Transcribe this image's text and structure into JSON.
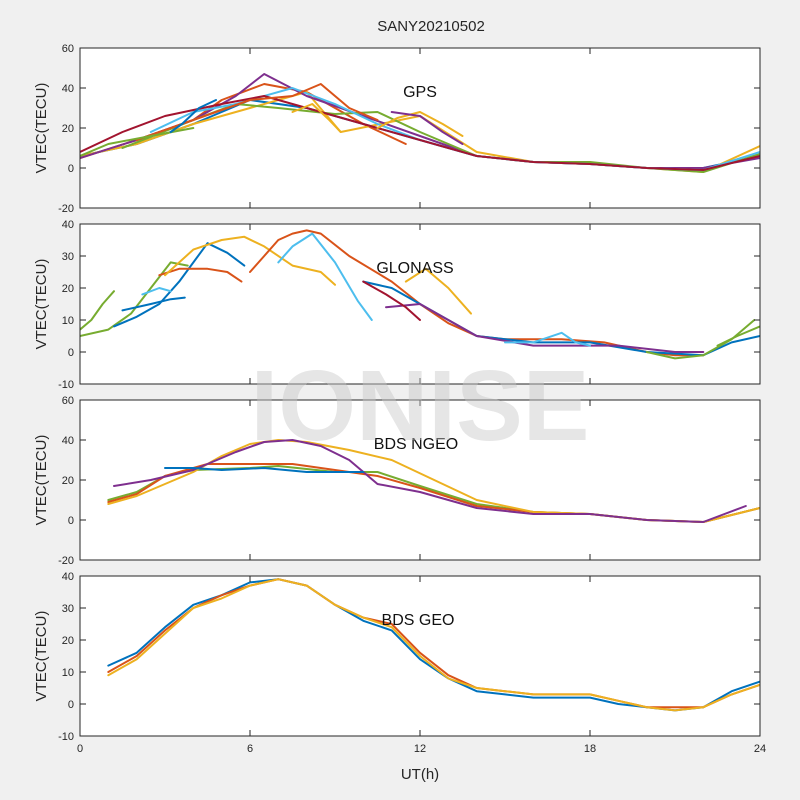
{
  "figure": {
    "title": "SANY20210502",
    "xlabel": "UT(h)",
    "watermark": "IONISE"
  },
  "chart_data": [
    {
      "type": "line",
      "annotation": "GPS",
      "ylabel": "VTEC(TECU)",
      "xlim": [
        0,
        24
      ],
      "ylim": [
        -20,
        60
      ],
      "xticks": [
        0,
        6,
        12,
        18,
        24
      ],
      "yticks": [
        -20,
        0,
        20,
        40,
        60
      ],
      "series": [
        {
          "color": "#0072BD",
          "x": [
            0,
            2,
            4,
            6,
            8,
            10,
            12,
            14,
            16,
            18,
            20,
            22,
            24
          ],
          "y": [
            6,
            12,
            22,
            34,
            30,
            22,
            14,
            6,
            3,
            2,
            0,
            0,
            6
          ]
        },
        {
          "color": "#D95319",
          "x": [
            0,
            2,
            4,
            5,
            6.5,
            8,
            9,
            10,
            11.5
          ],
          "y": [
            5,
            14,
            24,
            34,
            42,
            38,
            30,
            22,
            12
          ]
        },
        {
          "color": "#EDB120",
          "x": [
            0,
            2,
            4,
            6,
            8,
            9.2,
            12,
            14,
            16,
            18,
            20,
            22,
            24
          ],
          "y": [
            6,
            12,
            22,
            30,
            38,
            18,
            26,
            8,
            3,
            2,
            0,
            -2,
            11
          ]
        },
        {
          "color": "#7E2F8E",
          "x": [
            0,
            2,
            4,
            5.5,
            6.5,
            8,
            10,
            12,
            14,
            16,
            18,
            20,
            22,
            24
          ],
          "y": [
            5,
            14,
            24,
            36,
            47,
            36,
            26,
            16,
            6,
            3,
            2,
            0,
            0,
            5
          ]
        },
        {
          "color": "#77AC30",
          "x": [
            1.5,
            4,
            5.5,
            7,
            9,
            10.5,
            12,
            14,
            16,
            18,
            20,
            22,
            24
          ],
          "y": [
            10,
            24,
            32,
            30,
            27,
            28,
            18,
            6,
            3,
            3,
            0,
            -2,
            7
          ]
        },
        {
          "color": "#4DBEEE",
          "x": [
            2.5,
            4,
            5.5,
            7.5,
            9,
            10.5,
            12,
            14,
            16,
            18,
            20,
            22,
            24
          ],
          "y": [
            18,
            28,
            32,
            40,
            32,
            22,
            14,
            6,
            3,
            2,
            0,
            -1,
            8
          ]
        },
        {
          "color": "#A2142F",
          "x": [
            0,
            1.5,
            3,
            5,
            6.5,
            8,
            10,
            12,
            14,
            16,
            18,
            20,
            22,
            24
          ],
          "y": [
            8,
            18,
            26,
            32,
            36,
            30,
            22,
            14,
            6,
            3,
            2,
            0,
            -1,
            6
          ]
        },
        {
          "color": "#D95319",
          "x": [
            2,
            4,
            6,
            7.5,
            8.5,
            9.5,
            10.5
          ],
          "y": [
            14,
            24,
            34,
            36,
            42,
            30,
            24
          ]
        },
        {
          "color": "#EDB120",
          "x": [
            10.5,
            11.2,
            12,
            12.8,
            13.5
          ],
          "y": [
            20,
            25,
            28,
            22,
            16
          ]
        },
        {
          "color": "#77AC30",
          "x": [
            0,
            1,
            2.5,
            4
          ],
          "y": [
            6,
            12,
            16,
            20
          ]
        },
        {
          "color": "#0072BD",
          "x": [
            3.2,
            3.6,
            4.2,
            4.8
          ],
          "y": [
            18,
            22,
            30,
            34
          ]
        },
        {
          "color": "#EDB120",
          "x": [
            7.5,
            8.2,
            8.8,
            9.2
          ],
          "y": [
            28,
            32,
            24,
            18
          ]
        },
        {
          "color": "#7E2F8E",
          "x": [
            11,
            12,
            12.8,
            13.5
          ],
          "y": [
            28,
            26,
            18,
            12
          ]
        }
      ]
    },
    {
      "type": "line",
      "annotation": "GLONASS",
      "ylabel": "VTEC(TECU)",
      "xlim": [
        0,
        24
      ],
      "ylim": [
        -10,
        40
      ],
      "xticks": [
        0,
        6,
        12,
        18,
        24
      ],
      "yticks": [
        -10,
        0,
        10,
        20,
        30,
        40
      ],
      "series": [
        {
          "color": "#77AC30",
          "x": [
            0,
            0.4,
            0.8,
            1.2
          ],
          "y": [
            7,
            10,
            15,
            19
          ]
        },
        {
          "color": "#77AC30",
          "x": [
            0,
            1,
            1.8,
            2.5,
            3.2,
            3.8
          ],
          "y": [
            5,
            7,
            12,
            20,
            28,
            27
          ]
        },
        {
          "color": "#0072BD",
          "x": [
            1.2,
            2,
            2.8,
            3.5,
            4.5,
            5.2,
            5.8
          ],
          "y": [
            8,
            11,
            15,
            22,
            34,
            31,
            27
          ]
        },
        {
          "color": "#0072BD",
          "x": [
            1.5,
            2.5,
            3.2,
            3.7
          ],
          "y": [
            13,
            15,
            16.5,
            17
          ]
        },
        {
          "color": "#4DBEEE",
          "x": [
            2.2,
            2.8,
            3.2
          ],
          "y": [
            18,
            20,
            19
          ]
        },
        {
          "color": "#D95319",
          "x": [
            2.8,
            3.5,
            4.5,
            5.2,
            5.7
          ],
          "y": [
            24,
            26,
            26,
            25,
            22
          ]
        },
        {
          "color": "#EDB120",
          "x": [
            3,
            4,
            5,
            5.8,
            6.5,
            7.5,
            8.5,
            9
          ],
          "y": [
            24,
            32,
            35,
            36,
            33,
            27,
            25,
            21
          ]
        },
        {
          "color": "#D95319",
          "x": [
            6,
            6.5,
            7,
            7.5,
            8,
            8.5,
            9.5,
            11,
            12,
            13,
            14,
            15,
            17,
            18.5,
            20,
            21,
            22
          ],
          "y": [
            25,
            30,
            35,
            37,
            38,
            37,
            30,
            22,
            15,
            9,
            5,
            4,
            4,
            3,
            0,
            -1,
            -1
          ]
        },
        {
          "color": "#4DBEEE",
          "x": [
            7,
            7.5,
            8.2,
            9,
            9.8,
            10.3
          ],
          "y": [
            28,
            33,
            37,
            28,
            16,
            10
          ]
        },
        {
          "color": "#EDB120",
          "x": [
            11.5,
            12.2,
            13,
            13.8
          ],
          "y": [
            22,
            26,
            20,
            12
          ]
        },
        {
          "color": "#0072BD",
          "x": [
            10,
            11,
            12,
            13,
            14,
            16,
            18,
            20,
            22,
            23,
            24
          ],
          "y": [
            22,
            20,
            15,
            10,
            5,
            3,
            3,
            0,
            -1,
            3,
            5
          ]
        },
        {
          "color": "#7E2F8E",
          "x": [
            10.8,
            12,
            13,
            14,
            16,
            17.5,
            19,
            21,
            22
          ],
          "y": [
            14,
            15,
            10,
            5,
            2,
            2,
            2,
            0,
            0
          ]
        },
        {
          "color": "#A2142F",
          "x": [
            10,
            10.8,
            11.5,
            12
          ],
          "y": [
            22,
            18,
            14,
            10
          ]
        },
        {
          "color": "#4DBEEE",
          "x": [
            15,
            16,
            17,
            17.5,
            18
          ],
          "y": [
            3,
            3,
            6,
            3,
            2
          ]
        },
        {
          "color": "#77AC30",
          "x": [
            20,
            21,
            22,
            23,
            23.8
          ],
          "y": [
            0,
            -2,
            -1,
            4,
            10
          ]
        },
        {
          "color": "#77AC30",
          "x": [
            22.5,
            23.2,
            24
          ],
          "y": [
            2,
            5,
            8
          ]
        }
      ]
    },
    {
      "type": "line",
      "annotation": "BDS NGEO",
      "ylabel": "VTEC(TECU)",
      "xlim": [
        0,
        24
      ],
      "ylim": [
        -20,
        60
      ],
      "xticks": [
        0,
        6,
        12,
        18,
        24
      ],
      "yticks": [
        -20,
        0,
        20,
        40,
        60
      ],
      "series": [
        {
          "color": "#77AC30",
          "x": [
            1,
            2,
            3,
            4,
            6,
            7,
            9,
            10.5,
            12,
            14,
            16,
            18,
            20,
            22,
            24
          ],
          "y": [
            10,
            14,
            22,
            25,
            26,
            27,
            24,
            24,
            17,
            8,
            4,
            3,
            0,
            -1,
            6
          ]
        },
        {
          "color": "#D95319",
          "x": [
            1,
            2,
            3,
            4.5,
            6,
            7.5,
            9,
            10.5,
            12,
            14,
            16,
            18,
            20,
            22,
            24
          ],
          "y": [
            9,
            13,
            22,
            28,
            28,
            28,
            25,
            22,
            16,
            7,
            4,
            3,
            0,
            -1,
            6
          ]
        },
        {
          "color": "#EDB120",
          "x": [
            1,
            2,
            3,
            4,
            5,
            6,
            7,
            8,
            9.5,
            11,
            12.5,
            14,
            16,
            18,
            20,
            22,
            24
          ],
          "y": [
            8,
            12,
            18,
            24,
            32,
            38,
            40,
            39,
            35,
            30,
            20,
            10,
            4,
            3,
            0,
            -1,
            6
          ]
        },
        {
          "color": "#7E2F8E",
          "x": [
            1.2,
            2.5,
            4,
            5.5,
            6.5,
            7.5,
            8.5,
            9.5,
            10.5,
            12,
            14,
            16,
            18,
            20,
            22,
            23.5
          ],
          "y": [
            17,
            20,
            25,
            34,
            39,
            40,
            37,
            30,
            18,
            14,
            6,
            3,
            3,
            0,
            -1,
            7
          ]
        },
        {
          "color": "#0072BD",
          "x": [
            3,
            4,
            5,
            6.5,
            8,
            10
          ],
          "y": [
            26,
            26,
            25,
            26,
            24,
            24
          ]
        }
      ]
    },
    {
      "type": "line",
      "annotation": "BDS GEO",
      "ylabel": "VTEC(TECU)",
      "xlim": [
        0,
        24
      ],
      "ylim": [
        -10,
        40
      ],
      "xticks": [
        0,
        6,
        12,
        18,
        24
      ],
      "yticks": [
        -10,
        0,
        10,
        20,
        30,
        40
      ],
      "series": [
        {
          "color": "#0072BD",
          "x": [
            1,
            2,
            3,
            4,
            5,
            6,
            7,
            8,
            9,
            10,
            11,
            12,
            13,
            14,
            15,
            16,
            17,
            18,
            19,
            20,
            21,
            22,
            23,
            24
          ],
          "y": [
            12,
            16,
            24,
            31,
            34,
            38,
            39,
            37,
            31,
            26,
            23,
            14,
            8,
            4,
            3,
            2,
            2,
            2,
            0,
            -1,
            -2,
            -1,
            4,
            7
          ]
        },
        {
          "color": "#D95319",
          "x": [
            1,
            2,
            3,
            4,
            5,
            6,
            7,
            8,
            9,
            10,
            11,
            12,
            13,
            14,
            15,
            16,
            17,
            18,
            19,
            20,
            21,
            22,
            23,
            24
          ],
          "y": [
            10,
            15,
            23,
            30,
            34,
            37,
            39,
            37,
            31,
            27,
            25,
            16,
            9,
            5,
            4,
            3,
            3,
            3,
            1,
            -1,
            -1,
            -1,
            3,
            6
          ]
        },
        {
          "color": "#EDB120",
          "x": [
            1,
            2,
            3,
            4,
            5,
            6,
            7,
            8,
            9,
            10,
            11,
            12,
            13,
            14,
            15,
            16,
            17,
            18,
            19,
            20,
            21,
            22,
            23,
            24
          ],
          "y": [
            9,
            14,
            22,
            30,
            33,
            37,
            39,
            37,
            31,
            27,
            24,
            15,
            8,
            5,
            4,
            3,
            3,
            3,
            1,
            -1,
            -2,
            -1,
            3,
            6
          ]
        }
      ]
    }
  ]
}
